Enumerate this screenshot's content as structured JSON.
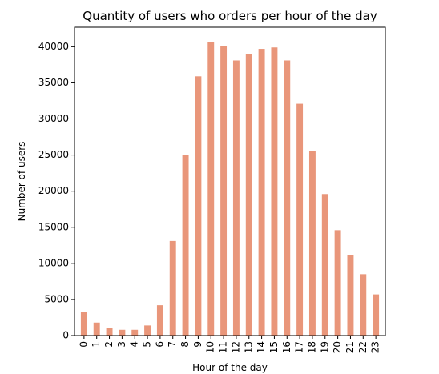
{
  "chart_data": {
    "type": "bar",
    "title": "Quantity of users who orders per hour of the day",
    "xlabel": "Hour of the day",
    "ylabel": "Number of users",
    "categories": [
      "0",
      "1",
      "2",
      "3",
      "4",
      "5",
      "6",
      "7",
      "8",
      "9",
      "10",
      "11",
      "12",
      "13",
      "14",
      "15",
      "16",
      "17",
      "18",
      "19",
      "20",
      "21",
      "22",
      "23"
    ],
    "values": [
      3300,
      1800,
      1100,
      800,
      800,
      1400,
      4200,
      13100,
      25000,
      35900,
      40700,
      40100,
      38100,
      39000,
      39700,
      39900,
      38100,
      32100,
      25600,
      19600,
      14600,
      11100,
      8500,
      5700
    ],
    "ylim": [
      0,
      42700
    ],
    "yticks": [
      0,
      5000,
      10000,
      15000,
      20000,
      25000,
      30000,
      35000,
      40000
    ],
    "ytick_labels": [
      "0",
      "5000",
      "10000",
      "15000",
      "20000",
      "25000",
      "30000",
      "35000",
      "40000"
    ],
    "bar_color": "#e9967a",
    "grid": false,
    "legend": "none"
  }
}
